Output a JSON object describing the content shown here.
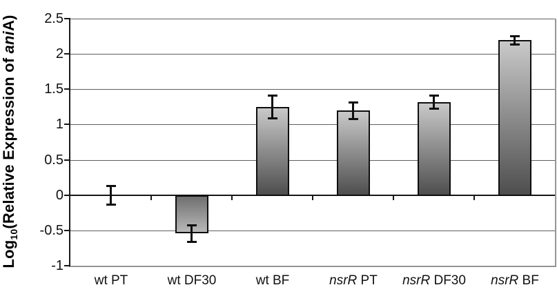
{
  "chart_data": {
    "type": "bar",
    "title": "",
    "ylabel": {
      "full_text": "Log10(Relative Expression of aniA)",
      "prefix": "Log",
      "sub": "10",
      "mid": "(Relative Expression of ",
      "gene": "ani",
      "gene_suffix": "A",
      "end": ")"
    },
    "categories": [
      {
        "italic": "",
        "text": "wt PT",
        "label": "wt PT"
      },
      {
        "italic": "",
        "text": "wt DF30",
        "label": "wt DF30"
      },
      {
        "italic": "",
        "text": "wt BF",
        "label": "wt BF"
      },
      {
        "italic": "nsrR",
        "text": " PT",
        "label": "nsrR PT"
      },
      {
        "italic": "nsrR",
        "text": " DF30",
        "label": "nsrR DF30"
      },
      {
        "italic": "nsrR",
        "text": " BF",
        "label": "nsrR BF"
      }
    ],
    "values": [
      0,
      -0.54,
      1.25,
      1.2,
      1.32,
      2.2
    ],
    "errors": [
      0.13,
      0.12,
      0.16,
      0.12,
      0.09,
      0.06
    ],
    "show_bar": [
      false,
      true,
      true,
      true,
      true,
      true
    ],
    "ylim": [
      -1,
      2.5
    ],
    "ytick_step": 0.5,
    "yticks": [
      2.5,
      2,
      1.5,
      1,
      0.5,
      0,
      -0.5,
      -1
    ],
    "ytick_labels": [
      "2.5",
      "2",
      "1.5",
      "1",
      "0.5",
      "0",
      "-0.5",
      "-1"
    ],
    "grid": true,
    "legend": null,
    "colors": {
      "bar_gradient_light": "#c9c9c9",
      "bar_gradient_dark": "#4e4e4e",
      "bar_border": "#0e0e0e",
      "gridline": "#5e5e5e",
      "axis": "#161616",
      "plot_border": "#949494",
      "error_bar": "#0e0e0e",
      "background": "#ffffff",
      "text": "#111111"
    }
  }
}
